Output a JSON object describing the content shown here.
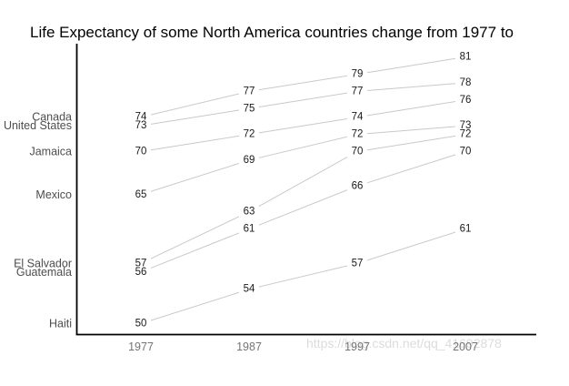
{
  "page": {
    "background": "#ffffff",
    "watermark": "https://blog.csdn.net/qq_41692878"
  },
  "chart_data": {
    "type": "line",
    "title": "Life Expectancy of some North America countries change from 1977 to",
    "x": [
      "1977",
      "1987",
      "1997",
      "2007"
    ],
    "series": [
      {
        "name": "Canada",
        "values": [
          74,
          77,
          79,
          81
        ]
      },
      {
        "name": "United States",
        "values": [
          73,
          75,
          77,
          78
        ]
      },
      {
        "name": "Jamaica",
        "values": [
          70,
          72,
          74,
          76
        ]
      },
      {
        "name": "Mexico",
        "values": [
          65,
          69,
          72,
          73
        ]
      },
      {
        "name": "El Salvador",
        "values": [
          57,
          63,
          70,
          72
        ]
      },
      {
        "name": "Guatemala",
        "values": [
          56,
          61,
          66,
          70
        ]
      },
      {
        "name": "Haiti",
        "values": [
          50,
          54,
          57,
          61
        ]
      }
    ],
    "xlabel": "",
    "ylabel": "",
    "ylim": [
      48,
      82
    ],
    "grid": false,
    "legend_position": "left-inline-labels",
    "point_labels": true,
    "colors": {
      "line": "#c9c9c9",
      "data_label": "#1a1a1a",
      "tick_label": "#757575",
      "country_label": "#4d4d4d",
      "axis": "#000000",
      "watermark": "#dcdcdc",
      "background": "#ffffff"
    }
  }
}
